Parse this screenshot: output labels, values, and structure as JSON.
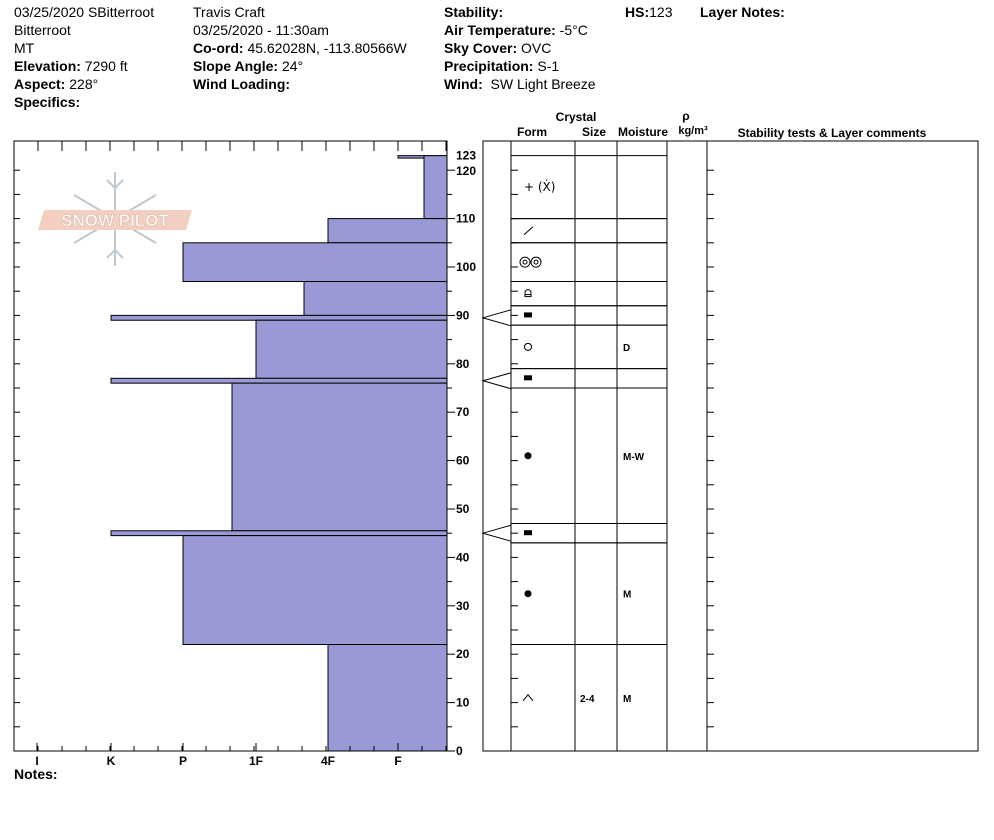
{
  "header": {
    "col1": {
      "date_location": "03/25/2020 SBitterroot",
      "range": "Bitterroot",
      "state": "MT",
      "elevation_label": "Elevation:",
      "elevation_value": "7290 ft",
      "aspect_label": "Aspect:",
      "aspect_value": "228°",
      "specifics_label": "Specifics:"
    },
    "col2": {
      "observer": "Travis  Craft",
      "datetime": "03/25/2020 - 11:30am",
      "coord_label": "Co-ord:",
      "coord_value": "45.62028N, -113.80566W",
      "slope_label": "Slope Angle:",
      "slope_value": "24°",
      "wind_loading_label": "Wind Loading:"
    },
    "col3": {
      "stability_label": "Stability:",
      "air_temp_label": "Air Temperature:",
      "air_temp_value": "-5°C",
      "sky_label": "Sky Cover:",
      "sky_value": "OVC",
      "precip_label": "Precipitation:",
      "precip_value": "S-1",
      "wind_label": "Wind:",
      "wind_value": "SW Light Breeze"
    },
    "col4": {
      "hs_label": "HS:",
      "hs_value": "123",
      "layer_notes_label": "Layer Notes:"
    }
  },
  "table_headers": {
    "crystal": "Crystal",
    "form": "Form",
    "size": "Size",
    "moisture": "Moisture",
    "rho": "ρ",
    "density_unit": "kg/m³",
    "comments": "Stability tests & Layer comments"
  },
  "logo_text": "SNOW PILOT",
  "notes_label": "Notes:",
  "chart_data": {
    "type": "bar",
    "orientation": "horizontal",
    "x_categories": [
      "I",
      "K",
      "P",
      "1F",
      "4F",
      "F"
    ],
    "y_ticks_labeled": [
      0,
      10,
      20,
      30,
      40,
      50,
      60,
      70,
      80,
      90,
      100,
      110,
      120,
      123
    ],
    "ylim": [
      0,
      123
    ],
    "colors": {
      "bar_fill": "#9999d6",
      "bar_stroke": "#000000"
    },
    "hardness_layers": [
      {
        "bottom": 122.5,
        "top": 123,
        "hardness": "F"
      },
      {
        "bottom": 110,
        "top": 123,
        "hardness": "F+"
      },
      {
        "bottom": 105,
        "top": 110,
        "hardness": "4F"
      },
      {
        "bottom": 97,
        "top": 105,
        "hardness": "P"
      },
      {
        "bottom": 90,
        "top": 97,
        "hardness": "1F+"
      },
      {
        "bottom": 89,
        "top": 90,
        "hardness": "K"
      },
      {
        "bottom": 77,
        "top": 89,
        "hardness": "1F"
      },
      {
        "bottom": 76,
        "top": 77,
        "hardness": "K"
      },
      {
        "bottom": 45.5,
        "top": 76,
        "hardness": "1F-"
      },
      {
        "bottom": 44.5,
        "top": 45.5,
        "hardness": "K"
      },
      {
        "bottom": 22,
        "top": 44.5,
        "hardness": "P"
      },
      {
        "bottom": 0,
        "top": 22,
        "hardness": "4F"
      }
    ],
    "crystal_layers": [
      {
        "bottom": 110,
        "top": 123,
        "form_icon": "plus-new-snow",
        "form": "+ (Ẋ)",
        "size": "",
        "moisture": ""
      },
      {
        "bottom": 105,
        "top": 110,
        "form_icon": "slash-decomposing",
        "form": "⁄",
        "size": "",
        "moisture": ""
      },
      {
        "bottom": 97,
        "top": 105,
        "form_icon": "melt-clusters",
        "form": "◎◎",
        "size": "",
        "moisture": ""
      },
      {
        "bottom": 92,
        "top": 97,
        "form_icon": "mixed-form",
        "form": "⌂",
        "size": "",
        "moisture": ""
      },
      {
        "bottom": 88,
        "top": 92,
        "form_icon": "ice-layer",
        "form": "▬",
        "size": "",
        "moisture": ""
      },
      {
        "bottom": 79,
        "top": 88,
        "form_icon": "rounded-open",
        "form": "○",
        "size": "",
        "moisture": "D"
      },
      {
        "bottom": 75,
        "top": 79,
        "form_icon": "ice-layer",
        "form": "▬",
        "size": "",
        "moisture": ""
      },
      {
        "bottom": 47,
        "top": 75,
        "form_icon": "melt-forms-filled",
        "form": "●",
        "size": "",
        "moisture": "M-W"
      },
      {
        "bottom": 43,
        "top": 47,
        "form_icon": "ice-layer",
        "form": "▬",
        "size": "",
        "moisture": ""
      },
      {
        "bottom": 22,
        "top": 43,
        "form_icon": "melt-forms-filled",
        "form": "●",
        "size": "",
        "moisture": "M"
      },
      {
        "bottom": 0,
        "top": 22,
        "form_icon": "depth-hoar",
        "form": "^",
        "size": "2-4",
        "moisture": "M"
      }
    ],
    "layer_markers": [
      89.5,
      76.5,
      45
    ]
  }
}
